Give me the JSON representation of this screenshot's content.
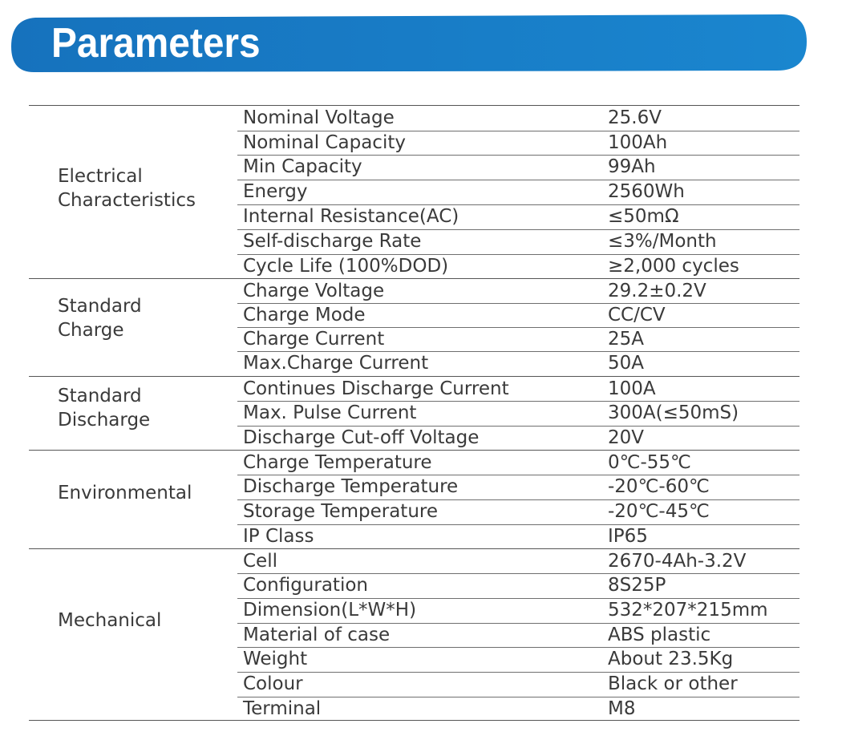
{
  "title": "Parameters",
  "colors": {
    "banner_blue": "#1777c2",
    "text": "#3a3a3a",
    "rule": "#6f6f6f"
  },
  "groups": [
    {
      "name_lines": [
        "Electrical",
        "Characteristics"
      ],
      "rows": [
        {
          "label": "Nominal Voltage",
          "value": "25.6V"
        },
        {
          "label": "Nominal Capacity",
          "value": "100Ah"
        },
        {
          "label": "Min Capacity",
          "value": "99Ah"
        },
        {
          "label": "Energy",
          "value": "2560Wh"
        },
        {
          "label": "Internal Resistance(AC)",
          "value": "≤50mΩ"
        },
        {
          "label": "Self-discharge Rate",
          "value": "≤3%/Month"
        },
        {
          "label": "Cycle Life (100%DOD)",
          "value": "≥2,000 cycles"
        }
      ]
    },
    {
      "name_lines": [
        "Standard",
        "Charge"
      ],
      "rows": [
        {
          "label": "Charge Voltage",
          "value": "29.2±0.2V"
        },
        {
          "label": "Charge Mode",
          "value": "CC/CV"
        },
        {
          "label": "Charge Current",
          "value": "25A"
        },
        {
          "label": "Max.Charge Current",
          "value": "50A"
        }
      ]
    },
    {
      "name_lines": [
        "Standard",
        "Discharge"
      ],
      "rows": [
        {
          "label": "Continues Discharge Current",
          "value": "100A"
        },
        {
          "label": "Max. Pulse Current",
          "value": "300A(≤50mS)"
        },
        {
          "label": "Discharge Cut-off Voltage",
          "value": "20V"
        }
      ]
    },
    {
      "name_lines": [
        "Environmental"
      ],
      "rows": [
        {
          "label": "Charge Temperature",
          "value": "0℃-55℃"
        },
        {
          "label": "Discharge Temperature",
          "value": "-20℃-60℃"
        },
        {
          "label": "Storage Temperature",
          "value": "-20℃-45℃"
        },
        {
          "label": "IP Class",
          "value": "IP65"
        }
      ]
    },
    {
      "name_lines": [
        "Mechanical"
      ],
      "rows": [
        {
          "label": "Cell",
          "value": "2670-4Ah-3.2V"
        },
        {
          "label": "Configuration",
          "value": "8S25P"
        },
        {
          "label": "Dimension(L*W*H)",
          "value": "532*207*215mm"
        },
        {
          "label": "Material of case",
          "value": "ABS plastic"
        },
        {
          "label": "Weight",
          "value": "About 23.5Kg"
        },
        {
          "label": "Colour",
          "value": "Black or other"
        },
        {
          "label": "Terminal",
          "value": "M8"
        }
      ]
    }
  ]
}
